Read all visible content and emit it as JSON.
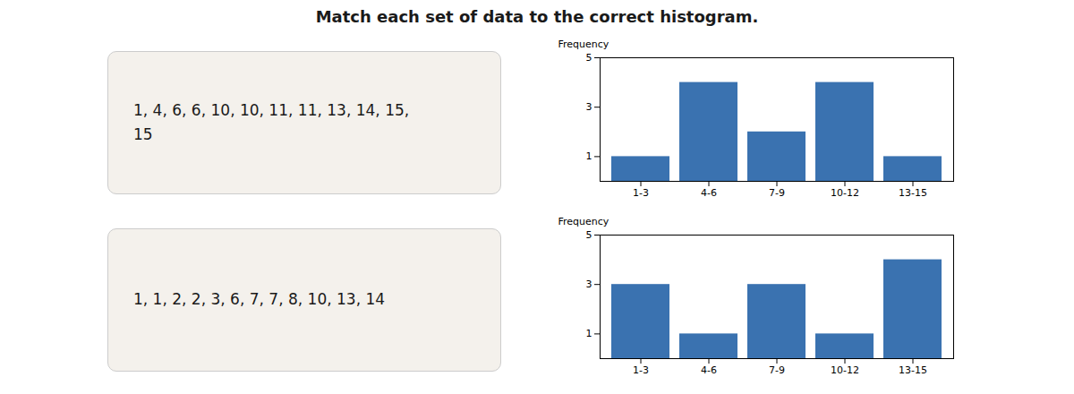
{
  "title": "Match each set of data to the correct histogram.",
  "chart_data": [
    {
      "type": "bar",
      "annotation": "1, 4, 6, 6, 10, 10, 11, 11, 13, 14, 15,\n15",
      "categories": [
        "1-3",
        "4-6",
        "7-9",
        "10-12",
        "13-15"
      ],
      "values": [
        1,
        4,
        2,
        4,
        1
      ],
      "color": "#3a72b0",
      "ylabel": "Frequency",
      "ylim": [
        0,
        5
      ],
      "yticks": [
        1,
        3,
        5
      ],
      "grid": false
    },
    {
      "type": "bar",
      "annotation": "1, 1, 2, 2, 3, 6, 7, 7, 8, 10, 13, 14",
      "categories": [
        "1-3",
        "4-6",
        "7-9",
        "10-12",
        "13-15"
      ],
      "values": [
        3,
        1,
        3,
        1,
        4
      ],
      "color": "#3a72b0",
      "ylabel": "Frequency",
      "ylim": [
        0,
        5
      ],
      "yticks": [
        1,
        3,
        5
      ],
      "grid": false
    }
  ]
}
